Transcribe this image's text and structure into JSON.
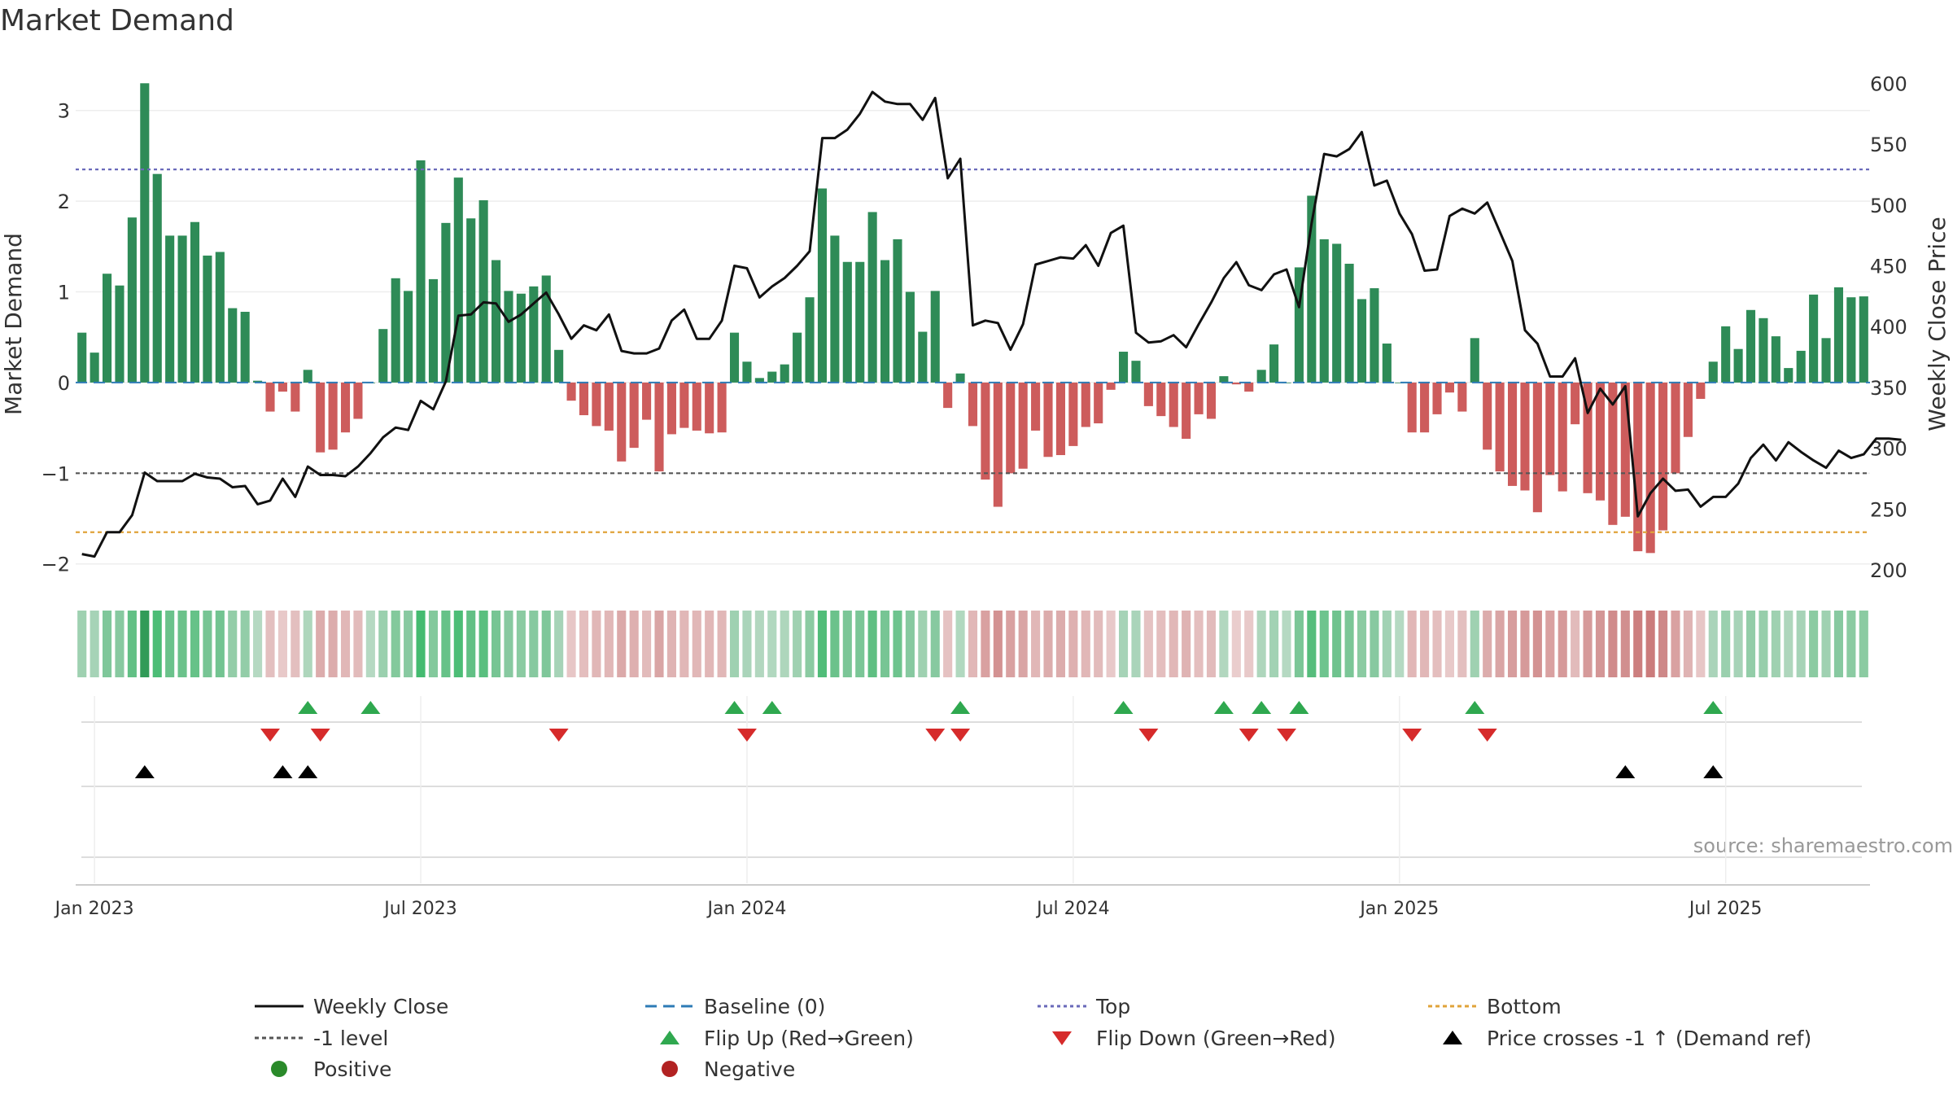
{
  "chart_data": {
    "type": "bar",
    "title": "Market Demand",
    "ylabel": "Market Demand",
    "y2label": "Weekly Close Price",
    "xlabel": "",
    "ylim": [
      -2.2,
      3.5
    ],
    "y2lim": [
      190,
      615
    ],
    "y_ticks": [
      {
        "v": 3,
        "label": "3"
      },
      {
        "v": 2,
        "label": "2"
      },
      {
        "v": 1,
        "label": "1"
      },
      {
        "v": 0,
        "label": "0"
      },
      {
        "v": -1,
        "label": "−1"
      },
      {
        "v": -2,
        "label": "−2"
      }
    ],
    "y2_ticks": [
      {
        "v": 600,
        "label": "600"
      },
      {
        "v": 550,
        "label": "550"
      },
      {
        "v": 500,
        "label": "500"
      },
      {
        "v": 450,
        "label": "450"
      },
      {
        "v": 400,
        "label": "400"
      },
      {
        "v": 350,
        "label": "350"
      },
      {
        "v": 300,
        "label": "300"
      },
      {
        "v": 250,
        "label": "250"
      },
      {
        "v": 200,
        "label": "200"
      }
    ],
    "x_ticks": [
      {
        "w": 1,
        "label": "Jan 2023"
      },
      {
        "w": 27,
        "label": "Jul 2023"
      },
      {
        "w": 53,
        "label": "Jan 2024"
      },
      {
        "w": 79,
        "label": "Jul 2024"
      },
      {
        "w": 105,
        "label": "Jan 2025"
      },
      {
        "w": 131,
        "label": "Jul 2025"
      }
    ],
    "reference_lines": {
      "top": 2.35,
      "minus_one_level": -1,
      "bottom": -1.65,
      "baseline": 0
    },
    "demand": [
      0.55,
      0.33,
      1.2,
      1.07,
      1.82,
      3.3,
      2.3,
      1.62,
      1.62,
      1.77,
      1.4,
      1.44,
      0.82,
      0.78,
      0.02,
      -0.32,
      -0.1,
      -0.32,
      0.14,
      -0.77,
      -0.74,
      -0.55,
      -0.4,
      0.0,
      0.59,
      1.15,
      1.01,
      2.45,
      1.14,
      1.76,
      2.26,
      1.81,
      2.01,
      1.35,
      1.01,
      0.98,
      1.06,
      1.18,
      0.36,
      -0.2,
      -0.36,
      -0.48,
      -0.53,
      -0.87,
      -0.72,
      -0.41,
      -0.98,
      -0.57,
      -0.5,
      -0.53,
      -0.56,
      -0.55,
      0.55,
      0.23,
      0.05,
      0.12,
      0.2,
      0.55,
      0.94,
      2.14,
      1.62,
      1.33,
      1.33,
      1.88,
      1.35,
      1.58,
      1.0,
      0.56,
      1.01,
      -0.28,
      0.1,
      -0.48,
      -1.07,
      -1.37,
      -1.0,
      -0.95,
      -0.53,
      -0.82,
      -0.8,
      -0.7,
      -0.49,
      -0.45,
      -0.08,
      0.34,
      0.24,
      -0.26,
      -0.37,
      -0.49,
      -0.62,
      -0.35,
      -0.4,
      0.07,
      -0.02,
      -0.1,
      0.14,
      0.42,
      0.0,
      1.27,
      2.06,
      1.58,
      1.53,
      1.31,
      0.92,
      1.04,
      0.43,
      0.0,
      -0.55,
      -0.55,
      -0.35,
      -0.11,
      -0.32,
      0.49,
      -0.74,
      -0.98,
      -1.14,
      -1.19,
      -1.43,
      -1.02,
      -1.2,
      -0.46,
      -1.22,
      -1.3,
      -1.57,
      -1.48,
      -1.86,
      -1.88,
      -1.63,
      -1.0,
      -0.6,
      -0.18,
      0.23,
      0.62,
      0.37,
      0.8,
      0.71,
      0.51,
      0.16,
      0.35,
      0.97,
      0.49,
      1.05,
      0.94,
      0.95
    ],
    "price": [
      213,
      211,
      231,
      231,
      245,
      280,
      273,
      273,
      273,
      279,
      276,
      275,
      268,
      269,
      254,
      257,
      275,
      260,
      285,
      278,
      278,
      277,
      285,
      296,
      309,
      317,
      315,
      339,
      332,
      355,
      409,
      410,
      420,
      419,
      404,
      410,
      419,
      428,
      410,
      390,
      401,
      397,
      410,
      380,
      378,
      378,
      382,
      405,
      414,
      390,
      390,
      405,
      450,
      448,
      424,
      433,
      440,
      450,
      462,
      555,
      555,
      562,
      575,
      593,
      585,
      583,
      583,
      570,
      588,
      522,
      538,
      401,
      405,
      403,
      381,
      402,
      451,
      454,
      457,
      456,
      467,
      450,
      477,
      483,
      395,
      387,
      388,
      393,
      383,
      402,
      420,
      440,
      453,
      434,
      430,
      443,
      447,
      416,
      485,
      542,
      540,
      546,
      560,
      516,
      520,
      493,
      476,
      446,
      447,
      491,
      497,
      493,
      502,
      478,
      454,
      397,
      386,
      359,
      359,
      374,
      329,
      349,
      336,
      351,
      244,
      263,
      275,
      265,
      266,
      252,
      260,
      260,
      271,
      292,
      303,
      290,
      305,
      297,
      290,
      284,
      298,
      292,
      295,
      308,
      308,
      307
    ],
    "flip_up_weeks": [
      18,
      23,
      52,
      55,
      70,
      83,
      91,
      94,
      97,
      111,
      130
    ],
    "flip_down_weeks": [
      15,
      19,
      38,
      53,
      68,
      70,
      85,
      93,
      96,
      106,
      112
    ],
    "price_cross_weeks": [
      5,
      16,
      18,
      123,
      130
    ],
    "legend": [
      {
        "kind": "line",
        "color": "#111111",
        "dash": "",
        "label": "Weekly Close"
      },
      {
        "kind": "line",
        "color": "#2d7bb6",
        "dash": "14,8",
        "label": "Baseline (0)"
      },
      {
        "kind": "line",
        "color": "#6a6aba",
        "dash": "4,4",
        "label": "Top"
      },
      {
        "kind": "line",
        "color": "#e0a33a",
        "dash": "5,4",
        "label": "Bottom"
      },
      {
        "kind": "line",
        "color": "#555555",
        "dash": "5,4",
        "label": "-1 level"
      },
      {
        "kind": "tri-up",
        "color": "#2fa84f",
        "label": "Flip Up (Red→Green)"
      },
      {
        "kind": "tri-down",
        "color": "#d62b2b",
        "label": "Flip Down (Green→Red)"
      },
      {
        "kind": "tri-up",
        "color": "#000000",
        "label": "Price crosses -1 ↑ (Demand ref)"
      },
      {
        "kind": "dot",
        "color": "#2a8a2a",
        "label": "Positive"
      },
      {
        "kind": "dot",
        "color": "#b22222",
        "label": "Negative"
      }
    ],
    "source": "source: sharemaestro.com",
    "colors": {
      "positive": "#2e8b57",
      "negative": "#cd5c5c",
      "price": "#111111"
    }
  }
}
